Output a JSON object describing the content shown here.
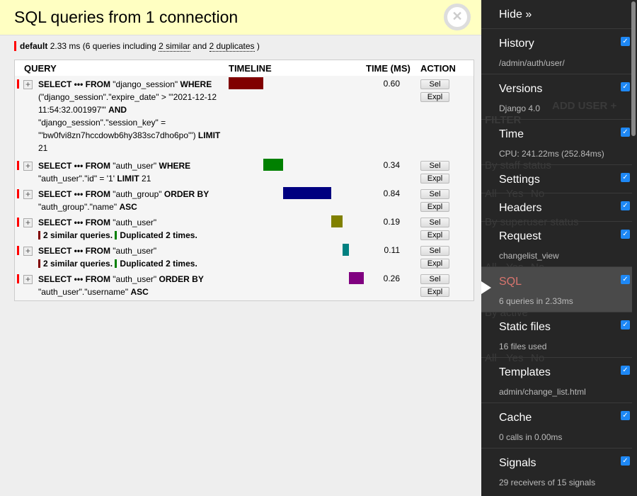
{
  "panel": {
    "title": "SQL queries from 1 connection",
    "close_icon": "close-icon",
    "summary": {
      "alias": "default",
      "time": "2.33 ms",
      "pre": "(6 queries including",
      "similar": "2 similar",
      "mid": "and",
      "duplicates": "2 duplicates",
      "post": ")"
    },
    "columns": [
      "QUERY",
      "TIMELINE",
      "TIME (MS)",
      "ACTION"
    ],
    "select_label": "Sel",
    "explain_label": "Expl",
    "total_ms": 2.33,
    "queries": [
      {
        "sql": [
          [
            "SELECT ••• FROM",
            1
          ],
          [
            " \"django_session\" ",
            0
          ],
          [
            "WHERE",
            1
          ],
          [
            " (\"django_session\".\"expire_date\" > '\"2021-12-12 11:54:32.001997\"' ",
            0
          ],
          [
            "AND",
            1
          ],
          [
            " \"django_session\".\"session_key\" = '\"bw0fvi8zn7hccdowb6hy383sc7dho6po\"') ",
            0
          ],
          [
            "LIMIT",
            1
          ],
          [
            " 21",
            0
          ]
        ],
        "time": "0.60",
        "start": 0,
        "dur": 0.6,
        "color": "#800000"
      },
      {
        "sql": [
          [
            "SELECT ••• FROM",
            1
          ],
          [
            " \"auth_user\" ",
            0
          ],
          [
            "WHERE",
            1
          ],
          [
            " \"auth_user\".\"id\" = '1' ",
            0
          ],
          [
            "LIMIT",
            1
          ],
          [
            " 21",
            0
          ]
        ],
        "time": "0.34",
        "start": 0.6,
        "dur": 0.34,
        "color": "#008000"
      },
      {
        "sql": [
          [
            "SELECT ••• FROM",
            1
          ],
          [
            " \"auth_group\" ",
            0
          ],
          [
            "ORDER BY",
            1
          ],
          [
            " \"auth_group\".\"name\" ",
            0
          ],
          [
            "ASC",
            1
          ]
        ],
        "time": "0.84",
        "start": 0.94,
        "dur": 0.84,
        "color": "#000080"
      },
      {
        "sql": [
          [
            "SELECT ••• FROM",
            1
          ],
          [
            " \"auth_user\"",
            0
          ]
        ],
        "similar": "2 similar queries.",
        "duplicated": "Duplicated 2 times.",
        "time": "0.19",
        "start": 1.78,
        "dur": 0.19,
        "color": "#808000"
      },
      {
        "sql": [
          [
            "SELECT ••• FROM",
            1
          ],
          [
            " \"auth_user\"",
            0
          ]
        ],
        "similar": "2 similar queries.",
        "duplicated": "Duplicated 2 times.",
        "time": "0.11",
        "start": 1.97,
        "dur": 0.11,
        "color": "#008080"
      },
      {
        "sql": [
          [
            "SELECT ••• FROM",
            1
          ],
          [
            " \"auth_user\" ",
            0
          ],
          [
            "ORDER BY",
            1
          ],
          [
            " \"auth_user\".\"username\" ",
            0
          ],
          [
            "ASC",
            1
          ]
        ],
        "time": "0.26",
        "start": 2.08,
        "dur": 0.26,
        "color": "#800080"
      }
    ]
  },
  "toolbar": {
    "hide_label": "Hide »",
    "active": "SQL",
    "checkbox_color": "#1e88f5",
    "items": [
      {
        "title": "History",
        "subtitle": "/admin/auth/user/"
      },
      {
        "title": "Versions",
        "subtitle": "Django 4.0"
      },
      {
        "title": "Time",
        "subtitle": "CPU: 241.22ms (252.84ms)"
      },
      {
        "title": "Settings",
        "subtitle": ""
      },
      {
        "title": "Headers",
        "subtitle": ""
      },
      {
        "title": "Request",
        "subtitle": "changelist_view"
      },
      {
        "title": "SQL",
        "subtitle": "6 queries in 2.33ms"
      },
      {
        "title": "Static files",
        "subtitle": "16 files used"
      },
      {
        "title": "Templates",
        "subtitle": "admin/change_list.html"
      },
      {
        "title": "Cache",
        "subtitle": "0 calls in 0.00ms"
      },
      {
        "title": "Signals",
        "subtitle": "29 receivers of 15 signals"
      }
    ]
  },
  "background": [
    "ADD USER +",
    "FILTER",
    "By staff status",
    "All",
    "Yes",
    "No",
    "By superuser status",
    "All",
    "Yes",
    "No",
    "By active",
    "All",
    "Yes",
    "No"
  ]
}
